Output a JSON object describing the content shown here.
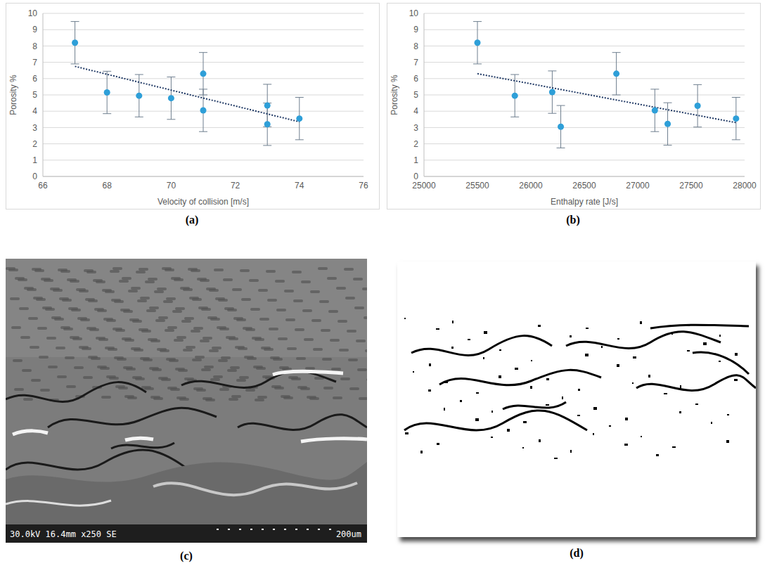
{
  "chart_data": [
    {
      "type": "scatter",
      "panel_label": "(a)",
      "x_label": "Velocity of collision [m/s]",
      "y_label": "Porosity %",
      "x": [
        67,
        68,
        69,
        70,
        71,
        71,
        73,
        73,
        74
      ],
      "values": [
        8.2,
        5.15,
        4.95,
        4.8,
        6.3,
        4.05,
        4.35,
        3.2,
        3.55
      ],
      "error": [
        1.3,
        1.3,
        1.3,
        1.3,
        1.3,
        1.3,
        1.3,
        1.3,
        1.3
      ],
      "color": "#2e9fd8",
      "marker": "circle",
      "trendline": {
        "x": [
          67,
          74
        ],
        "values": [
          6.75,
          3.35
        ],
        "color": "#1f3864",
        "line_style": "dotted"
      },
      "xlim": [
        66,
        76
      ],
      "xticks": [
        66,
        68,
        70,
        72,
        74,
        76
      ],
      "ylim": [
        0,
        10
      ],
      "yticks": [
        0,
        1,
        2,
        3,
        4,
        5,
        6,
        7,
        8,
        9,
        10
      ],
      "grid": true
    },
    {
      "type": "scatter",
      "panel_label": "(b)",
      "x_label": "Enthalpy rate [J/s]",
      "y_label": "Porosity %",
      "x": [
        25500,
        25850,
        26200,
        26280,
        26800,
        27160,
        27280,
        27560,
        27920
      ],
      "values": [
        8.2,
        4.95,
        5.17,
        3.05,
        6.3,
        4.05,
        3.22,
        4.33,
        3.55
      ],
      "error": [
        1.3,
        1.3,
        1.3,
        1.3,
        1.3,
        1.3,
        1.3,
        1.3,
        1.3
      ],
      "color": "#2e9fd8",
      "marker": "circle",
      "trendline": {
        "x": [
          25500,
          27920
        ],
        "values": [
          6.3,
          3.3
        ],
        "color": "#1f3864",
        "line_style": "dotted"
      },
      "xlim": [
        25000,
        28000
      ],
      "xticks": [
        25000,
        25500,
        26000,
        26500,
        27000,
        27500,
        28000
      ],
      "ylim": [
        0,
        10
      ],
      "yticks": [
        0,
        1,
        2,
        3,
        4,
        5,
        6,
        7,
        8,
        9,
        10
      ],
      "grid": true
    }
  ],
  "images": [
    {
      "panel_label": "(c)",
      "kind": "SEM micrograph",
      "overlay_text": [
        "30.0kV 16.4mm x250 SE",
        "200um"
      ]
    },
    {
      "panel_label": "(d)",
      "kind": "binary image"
    }
  ]
}
